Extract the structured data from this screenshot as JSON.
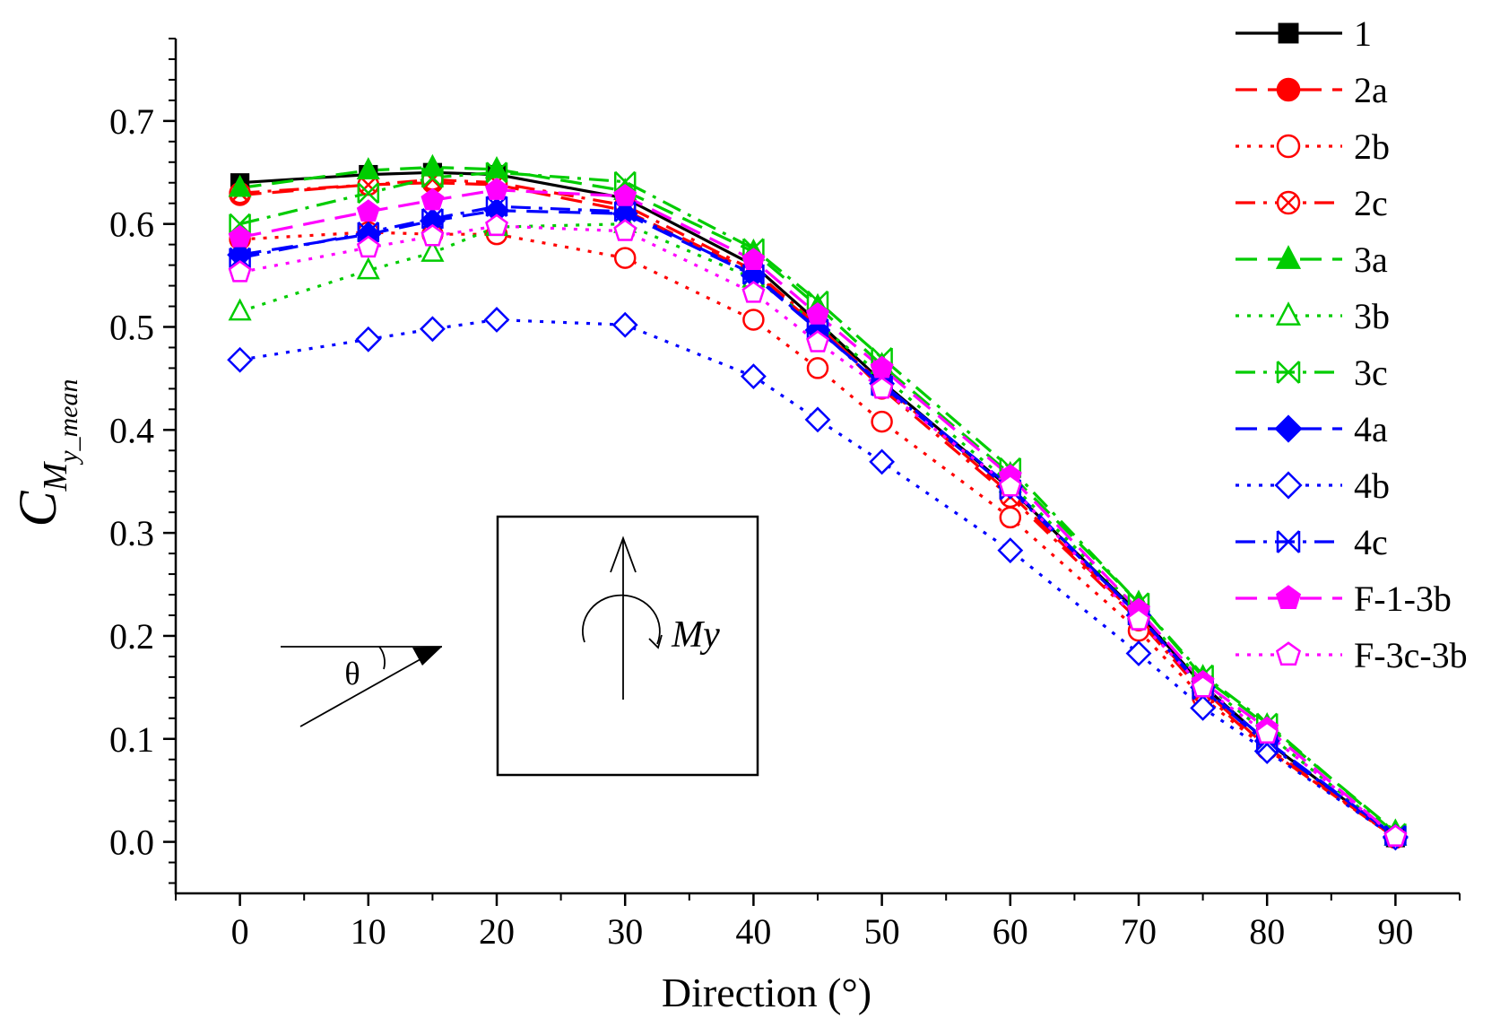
{
  "chart_data": {
    "type": "line",
    "title": "",
    "xlabel": "Direction (°)",
    "ylabel": {
      "main": "C",
      "sub": "M",
      "subsub": "y_mean"
    },
    "xlim": [
      -5,
      95
    ],
    "ylim": [
      -0.05,
      0.78
    ],
    "x_ticks": [
      0,
      10,
      20,
      30,
      40,
      50,
      60,
      70,
      80,
      90
    ],
    "x_tick_labels": [
      "0",
      "10",
      "20",
      "30",
      "40",
      "50",
      "60",
      "70",
      "80",
      "90"
    ],
    "y_ticks": [
      0.0,
      0.1,
      0.2,
      0.3,
      0.4,
      0.5,
      0.6,
      0.7
    ],
    "y_tick_labels": [
      "0.0",
      "0.1",
      "0.2",
      "0.3",
      "0.4",
      "0.5",
      "0.6",
      "0.7"
    ],
    "x": [
      0,
      10,
      15,
      20,
      30,
      40,
      45,
      50,
      60,
      70,
      75,
      80,
      90
    ],
    "legend_position": "top-right",
    "series": [
      {
        "name": "1",
        "color": "#000000",
        "dash": "solid",
        "marker": "square",
        "filled": true,
        "values": [
          0.64,
          0.648,
          0.65,
          0.648,
          0.625,
          0.56,
          0.505,
          0.447,
          0.343,
          0.222,
          0.152,
          0.097,
          0.004
        ]
      },
      {
        "name": "2a",
        "color": "#ff0000",
        "dash": "dash",
        "marker": "circle",
        "filled": true,
        "values": [
          0.628,
          0.638,
          0.64,
          0.638,
          0.613,
          0.553,
          0.5,
          0.445,
          0.338,
          0.218,
          0.148,
          0.092,
          0.004
        ]
      },
      {
        "name": "2b",
        "color": "#ff0000",
        "dash": "dot",
        "marker": "circle",
        "filled": false,
        "values": [
          0.585,
          0.592,
          0.59,
          0.59,
          0.567,
          0.507,
          0.46,
          0.408,
          0.315,
          0.205,
          0.14,
          0.09,
          0.004
        ]
      },
      {
        "name": "2c",
        "color": "#ff0000",
        "dash": "dashdot",
        "marker": "xcircle",
        "filled": false,
        "values": [
          0.63,
          0.638,
          0.643,
          0.64,
          0.618,
          0.555,
          0.502,
          0.44,
          0.335,
          0.215,
          0.145,
          0.09,
          0.004
        ]
      },
      {
        "name": "3a",
        "color": "#00cc00",
        "dash": "dash",
        "marker": "triangle",
        "filled": true,
        "values": [
          0.635,
          0.652,
          0.655,
          0.653,
          0.632,
          0.573,
          0.52,
          0.463,
          0.357,
          0.232,
          0.16,
          0.113,
          0.01
        ]
      },
      {
        "name": "3b",
        "color": "#00cc00",
        "dash": "dot",
        "marker": "triangle",
        "filled": false,
        "values": [
          0.515,
          0.555,
          0.572,
          0.597,
          0.6,
          0.547,
          0.503,
          0.453,
          0.348,
          0.225,
          0.155,
          0.105,
          0.005
        ]
      },
      {
        "name": "3c",
        "color": "#00cc00",
        "dash": "dashdot",
        "marker": "xbox",
        "filled": false,
        "values": [
          0.6,
          0.63,
          0.645,
          0.65,
          0.641,
          0.576,
          0.525,
          0.47,
          0.363,
          0.232,
          0.162,
          0.115,
          0.008
        ]
      },
      {
        "name": "4a",
        "color": "#0000ff",
        "dash": "dash",
        "marker": "diamond",
        "filled": true,
        "values": [
          0.57,
          0.59,
          0.603,
          0.613,
          0.61,
          0.55,
          0.497,
          0.445,
          0.345,
          0.22,
          0.15,
          0.098,
          0.005
        ]
      },
      {
        "name": "4b",
        "color": "#0000ff",
        "dash": "dot",
        "marker": "diamond",
        "filled": false,
        "values": [
          0.468,
          0.488,
          0.498,
          0.507,
          0.502,
          0.452,
          0.41,
          0.369,
          0.283,
          0.183,
          0.13,
          0.088,
          0.004
        ]
      },
      {
        "name": "4c",
        "color": "#0000ff",
        "dash": "dashdot",
        "marker": "xbox",
        "filled": false,
        "values": [
          0.567,
          0.592,
          0.605,
          0.617,
          0.612,
          0.551,
          0.498,
          0.443,
          0.342,
          0.22,
          0.148,
          0.095,
          0.006
        ]
      },
      {
        "name": "F-1-3b",
        "color": "#ff00ff",
        "dash": "dash",
        "marker": "pentagon",
        "filled": true,
        "values": [
          0.587,
          0.612,
          0.623,
          0.633,
          0.627,
          0.565,
          0.512,
          0.46,
          0.355,
          0.225,
          0.155,
          0.11,
          0.005
        ]
      },
      {
        "name": "F-3c-3b",
        "color": "#ff00ff",
        "dash": "dot",
        "marker": "pentagon",
        "filled": false,
        "values": [
          0.553,
          0.577,
          0.588,
          0.598,
          0.593,
          0.533,
          0.485,
          0.44,
          0.345,
          0.215,
          0.15,
          0.105,
          0.005
        ]
      }
    ],
    "inset": {
      "theta_label": "θ",
      "moment_label": "My"
    }
  }
}
